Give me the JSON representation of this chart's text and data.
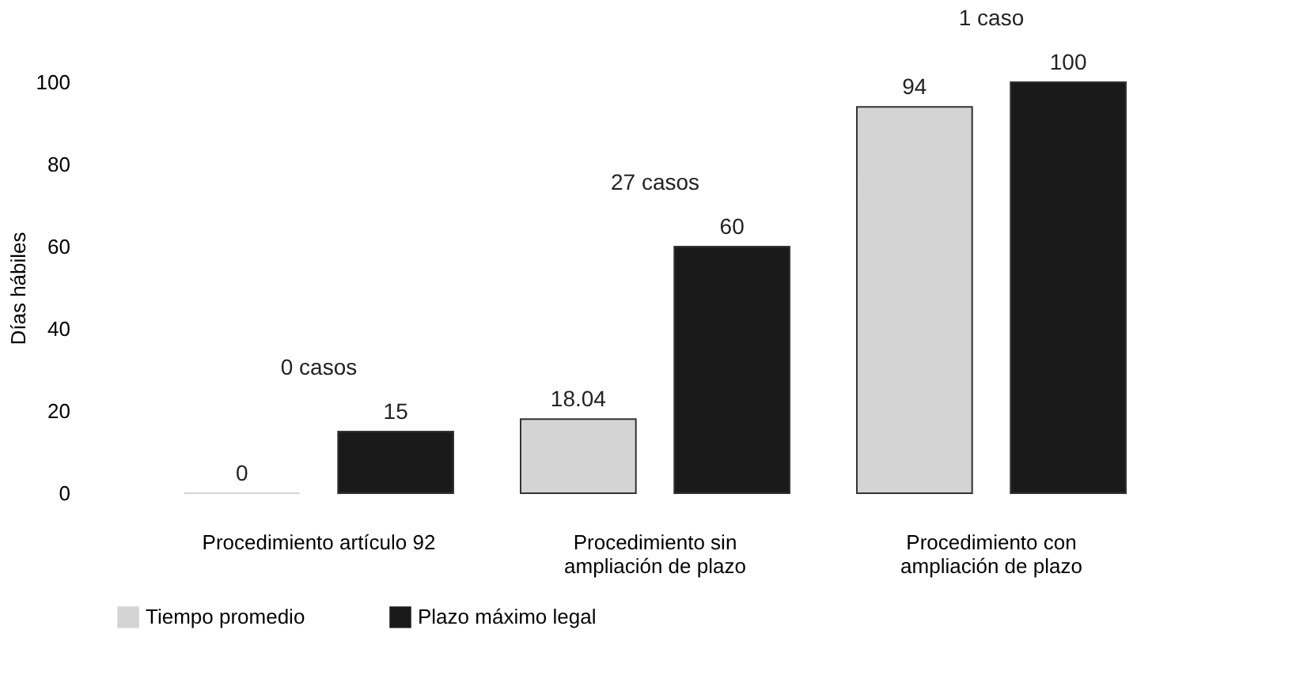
{
  "chart_data": {
    "type": "bar",
    "ylabel": "Días hábiles",
    "categories": [
      "Procedimiento artículo 92",
      "Procedimiento sin ampliación de plazo",
      "Procedimiento con ampliación de plazo"
    ],
    "series": [
      {
        "name": "Tiempo promedio",
        "color": "#d4d4d4",
        "values": [
          0,
          18.04,
          94
        ]
      },
      {
        "name": "Plazo máximo legal",
        "color": "#1a1a1a",
        "values": [
          15,
          60,
          100
        ]
      }
    ],
    "ylim": [
      0,
      100
    ],
    "yticks": [
      0,
      20,
      40,
      60,
      80,
      100
    ],
    "grid": false,
    "legend": "bottom",
    "data_labels": true,
    "annotations": [
      "0 casos",
      "27 casos",
      "1 caso"
    ]
  }
}
